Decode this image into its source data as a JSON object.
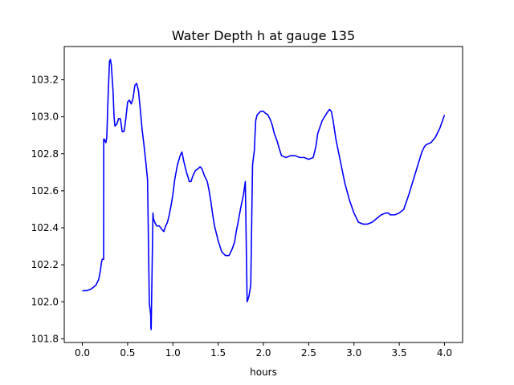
{
  "chart_data": {
    "type": "line",
    "title": "Water Depth h at gauge 135",
    "xlabel": "hours",
    "ylabel": "",
    "xlim": [
      -0.2,
      4.2
    ],
    "ylim": [
      101.78,
      103.38
    ],
    "xticks": [
      0.0,
      0.5,
      1.0,
      1.5,
      2.0,
      2.5,
      3.0,
      3.5,
      4.0
    ],
    "xtick_labels": [
      "0.0",
      "0.5",
      "1.0",
      "1.5",
      "2.0",
      "2.5",
      "3.0",
      "3.5",
      "4.0"
    ],
    "yticks": [
      101.8,
      102.0,
      102.2,
      102.4,
      102.6,
      102.8,
      103.0,
      103.2
    ],
    "ytick_labels": [
      "101.8",
      "102.0",
      "102.2",
      "102.4",
      "102.6",
      "102.8",
      "103.0",
      "103.2"
    ],
    "grid": false,
    "legend": "none",
    "line_color": "#0000ff",
    "series": [
      {
        "x": [
          0.0,
          0.05,
          0.1,
          0.15,
          0.18,
          0.2,
          0.21,
          0.22,
          0.235,
          0.236,
          0.24,
          0.26,
          0.27,
          0.28,
          0.29,
          0.3,
          0.31,
          0.32,
          0.34,
          0.35,
          0.36,
          0.38,
          0.4,
          0.42,
          0.44,
          0.46,
          0.47,
          0.48,
          0.5,
          0.52,
          0.54,
          0.56,
          0.58,
          0.6,
          0.62,
          0.64,
          0.66,
          0.68,
          0.7,
          0.72,
          0.74,
          0.755,
          0.757,
          0.76,
          0.78,
          0.785,
          0.8,
          0.82,
          0.85,
          0.88,
          0.9,
          0.92,
          0.94,
          0.96,
          0.98,
          1.0,
          1.02,
          1.05,
          1.08,
          1.1,
          1.12,
          1.15,
          1.17,
          1.18,
          1.2,
          1.22,
          1.25,
          1.28,
          1.3,
          1.32,
          1.35,
          1.38,
          1.4,
          1.42,
          1.44,
          1.46,
          1.48,
          1.5,
          1.52,
          1.54,
          1.56,
          1.58,
          1.6,
          1.62,
          1.65,
          1.68,
          1.7,
          1.72,
          1.75,
          1.78,
          1.8,
          1.82,
          1.84,
          1.86,
          1.88,
          1.9,
          1.905,
          1.91,
          1.915,
          1.93,
          1.95,
          1.97,
          2.0,
          2.02,
          2.05,
          2.08,
          2.1,
          2.12,
          2.15,
          2.18,
          2.2,
          2.25,
          2.3,
          2.35,
          2.4,
          2.45,
          2.5,
          2.55,
          2.58,
          2.6,
          2.65,
          2.7,
          2.73,
          2.75,
          2.77,
          2.8,
          2.85,
          2.9,
          2.95,
          3.0,
          3.05,
          3.1,
          3.15,
          3.2,
          3.25,
          3.3,
          3.35,
          3.38,
          3.4,
          3.45,
          3.5,
          3.55,
          3.6,
          3.65,
          3.7,
          3.75,
          3.78,
          3.8,
          3.85,
          3.9,
          3.95,
          4.0
        ],
        "y": [
          102.06,
          102.06,
          102.07,
          102.09,
          102.12,
          102.17,
          102.21,
          102.23,
          102.23,
          102.88,
          102.88,
          102.86,
          102.89,
          103.05,
          103.18,
          103.3,
          103.31,
          103.28,
          103.13,
          103.0,
          102.95,
          102.96,
          102.99,
          102.99,
          102.92,
          102.92,
          102.95,
          102.99,
          103.08,
          103.09,
          103.07,
          103.1,
          103.17,
          103.18,
          103.14,
          103.04,
          102.93,
          102.85,
          102.76,
          102.66,
          101.99,
          101.93,
          101.86,
          101.85,
          102.48,
          102.45,
          102.43,
          102.41,
          102.41,
          102.39,
          102.38,
          102.41,
          102.43,
          102.47,
          102.52,
          102.58,
          102.66,
          102.74,
          102.79,
          102.81,
          102.76,
          102.7,
          102.67,
          102.65,
          102.65,
          102.68,
          102.71,
          102.72,
          102.73,
          102.72,
          102.68,
          102.65,
          102.6,
          102.54,
          102.47,
          102.41,
          102.37,
          102.33,
          102.3,
          102.27,
          102.26,
          102.25,
          102.25,
          102.25,
          102.28,
          102.32,
          102.38,
          102.43,
          102.51,
          102.58,
          102.65,
          102.0,
          102.03,
          102.09,
          102.74,
          102.82,
          102.88,
          102.93,
          102.98,
          103.01,
          103.02,
          103.03,
          103.03,
          103.02,
          103.01,
          102.98,
          102.95,
          102.91,
          102.87,
          102.82,
          102.79,
          102.78,
          102.79,
          102.79,
          102.78,
          102.78,
          102.77,
          102.78,
          102.84,
          102.91,
          102.98,
          103.02,
          103.04,
          103.03,
          102.98,
          102.88,
          102.76,
          102.64,
          102.55,
          102.48,
          102.43,
          102.42,
          102.42,
          102.43,
          102.45,
          102.47,
          102.48,
          102.48,
          102.47,
          102.47,
          102.48,
          102.5,
          102.57,
          102.65,
          102.73,
          102.81,
          102.84,
          102.85,
          102.86,
          102.89,
          102.94,
          103.01
        ]
      }
    ]
  }
}
